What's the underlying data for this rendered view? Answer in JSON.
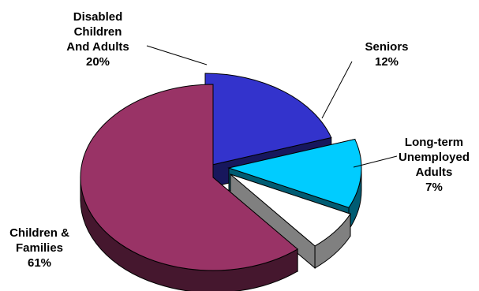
{
  "chart_data": {
    "type": "pie",
    "style": "3d-exploded",
    "title": "",
    "categories": [
      "Disabled Children And Adults",
      "Seniors",
      "Long-term Unemployed Adults",
      "Children & Families"
    ],
    "values": [
      20,
      12,
      7,
      61
    ],
    "value_labels": [
      "20%",
      "12%",
      "7%",
      "61%"
    ],
    "colors": {
      "Disabled Children And Adults": "#3333cc",
      "Seniors": "#00ccff",
      "Long-term Unemployed Adults": "#ffffff",
      "Children & Families": "#993366"
    },
    "legend": "none"
  },
  "labels": {
    "disabled": {
      "lines": [
        "Disabled",
        "Children",
        "And Adults"
      ],
      "pct": "20%"
    },
    "seniors": {
      "lines": [
        "Seniors"
      ],
      "pct": "12%"
    },
    "unemployed": {
      "lines": [
        "Long-term",
        "Unemployed",
        "Adults"
      ],
      "pct": "7%"
    },
    "families": {
      "lines": [
        "Children &",
        "Families"
      ],
      "pct": "61%"
    }
  }
}
